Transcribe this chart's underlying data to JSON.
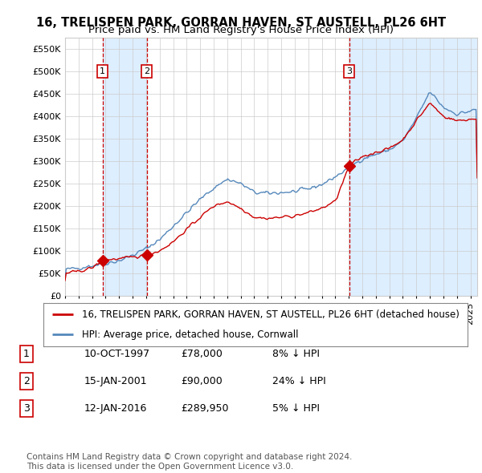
{
  "title": "16, TRELISPEN PARK, GORRAN HAVEN, ST AUSTELL, PL26 6HT",
  "subtitle": "Price paid vs. HM Land Registry's House Price Index (HPI)",
  "ylabel_ticks": [
    "£0",
    "£50K",
    "£100K",
    "£150K",
    "£200K",
    "£250K",
    "£300K",
    "£350K",
    "£400K",
    "£450K",
    "£500K",
    "£550K"
  ],
  "ytick_values": [
    0,
    50000,
    100000,
    150000,
    200000,
    250000,
    300000,
    350000,
    400000,
    450000,
    500000,
    550000
  ],
  "ylim": [
    0,
    575000
  ],
  "xlim_start": 1995.0,
  "xlim_end": 2025.5,
  "purchases": [
    {
      "label": "1",
      "date_str": "10-OCT-1997",
      "year": 1997.78,
      "price": 78000,
      "hpi_diff": "8% ↓ HPI"
    },
    {
      "label": "2",
      "date_str": "15-JAN-2001",
      "year": 2001.04,
      "price": 90000,
      "hpi_diff": "24% ↓ HPI"
    },
    {
      "label": "3",
      "date_str": "12-JAN-2016",
      "year": 2016.04,
      "price": 289950,
      "hpi_diff": "5% ↓ HPI"
    }
  ],
  "ownership_spans": [
    {
      "start": 1997.78,
      "end": 2001.04
    },
    {
      "start": 2016.04,
      "end": 2025.5
    }
  ],
  "hpi_color": "#5588bb",
  "price_color": "#cc0000",
  "marker_color": "#cc0000",
  "vline_color": "#cc0000",
  "ownership_color": "#ddeeff",
  "grid_color": "#cccccc",
  "background_color": "#ffffff",
  "legend_label_house": "16, TRELISPEN PARK, GORRAN HAVEN, ST AUSTELL, PL26 6HT (detached house)",
  "legend_label_hpi": "HPI: Average price, detached house, Cornwall",
  "footer_text": "Contains HM Land Registry data © Crown copyright and database right 2024.\nThis data is licensed under the Open Government Licence v3.0.",
  "title_fontsize": 10.5,
  "subtitle_fontsize": 9.5,
  "tick_fontsize": 8,
  "legend_fontsize": 8.5,
  "table_fontsize": 9,
  "footer_fontsize": 7.5
}
